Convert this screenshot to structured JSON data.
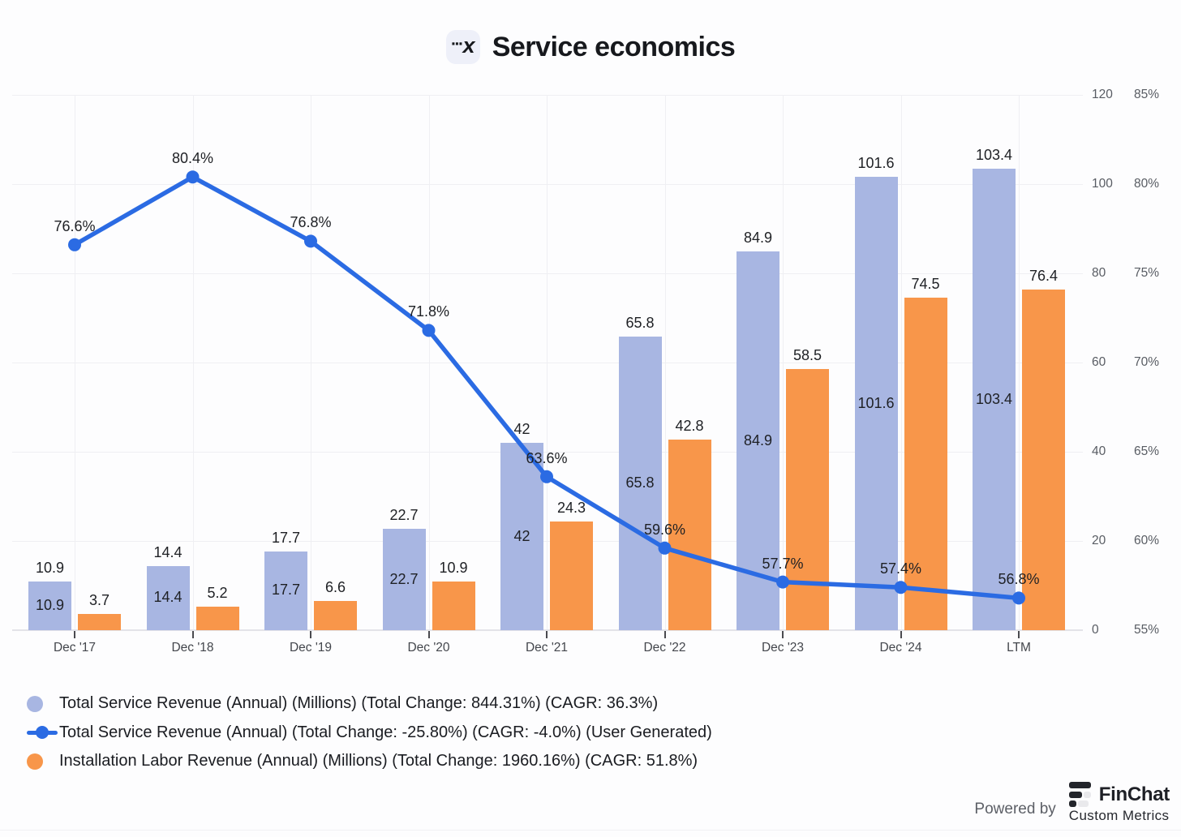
{
  "header": {
    "title": "Service economics",
    "icon": {
      "name": "custom-metrics-icon",
      "dots": "···",
      "letter": "x"
    }
  },
  "chart_data": {
    "type": "bar+line",
    "title": "Service economics",
    "categories": [
      "Dec '17",
      "Dec '18",
      "Dec '19",
      "Dec '20",
      "Dec '21",
      "Dec '22",
      "Dec '23",
      "Dec '24",
      "LTM"
    ],
    "series": [
      {
        "name": "Total Service Revenue (Annual) (Millions)",
        "type": "bar",
        "axis": "left",
        "color": "#a8b6e2",
        "values": [
          10.9,
          14.4,
          17.7,
          22.7,
          42,
          65.8,
          84.9,
          101.6,
          103.4
        ],
        "labels_above": true,
        "labels_inside": true
      },
      {
        "name": "Installation Labor Revenue (Annual) (Millions)",
        "type": "bar",
        "axis": "left",
        "color": "#f8964a",
        "values": [
          3.7,
          5.2,
          6.6,
          10.9,
          24.3,
          42.8,
          58.5,
          74.5,
          76.4
        ],
        "labels_above": true,
        "labels_inside": false
      },
      {
        "name": "Total Service Revenue (Annual) (User Generated)",
        "type": "line",
        "axis": "right",
        "color": "#2b6be3",
        "unit": "%",
        "values": [
          76.6,
          80.4,
          76.8,
          71.8,
          63.6,
          59.6,
          57.7,
          57.4,
          56.8
        ]
      }
    ],
    "left_axis": {
      "min": 0,
      "max": 120,
      "ticks": [
        120,
        100,
        80,
        60,
        40,
        20,
        0
      ]
    },
    "right_axis": {
      "min": 55,
      "max": 85,
      "ticks": [
        "85%",
        "80%",
        "75%",
        "70%",
        "65%",
        "60%",
        "55%"
      ]
    },
    "grid": true,
    "legend_position": "bottom-left"
  },
  "legend": {
    "items": [
      {
        "label": "Total Service Revenue (Annual) (Millions) (Total Change: 844.31%) (CAGR: 36.3%)",
        "marker": "circle",
        "color": "#a8b6e2"
      },
      {
        "label": "Total Service Revenue (Annual) (Total Change: -25.80%) (CAGR: -4.0%) (User Generated)",
        "marker": "line-dot",
        "color": "#2b6be3"
      },
      {
        "label": "Installation Labor Revenue (Annual) (Millions) (Total Change: 1960.16%) (CAGR: 51.8%)",
        "marker": "circle",
        "color": "#f8964a"
      }
    ]
  },
  "footer": {
    "powered_by": "Powered by",
    "brand": "FinChat",
    "brand_sub": "Custom Metrics"
  }
}
